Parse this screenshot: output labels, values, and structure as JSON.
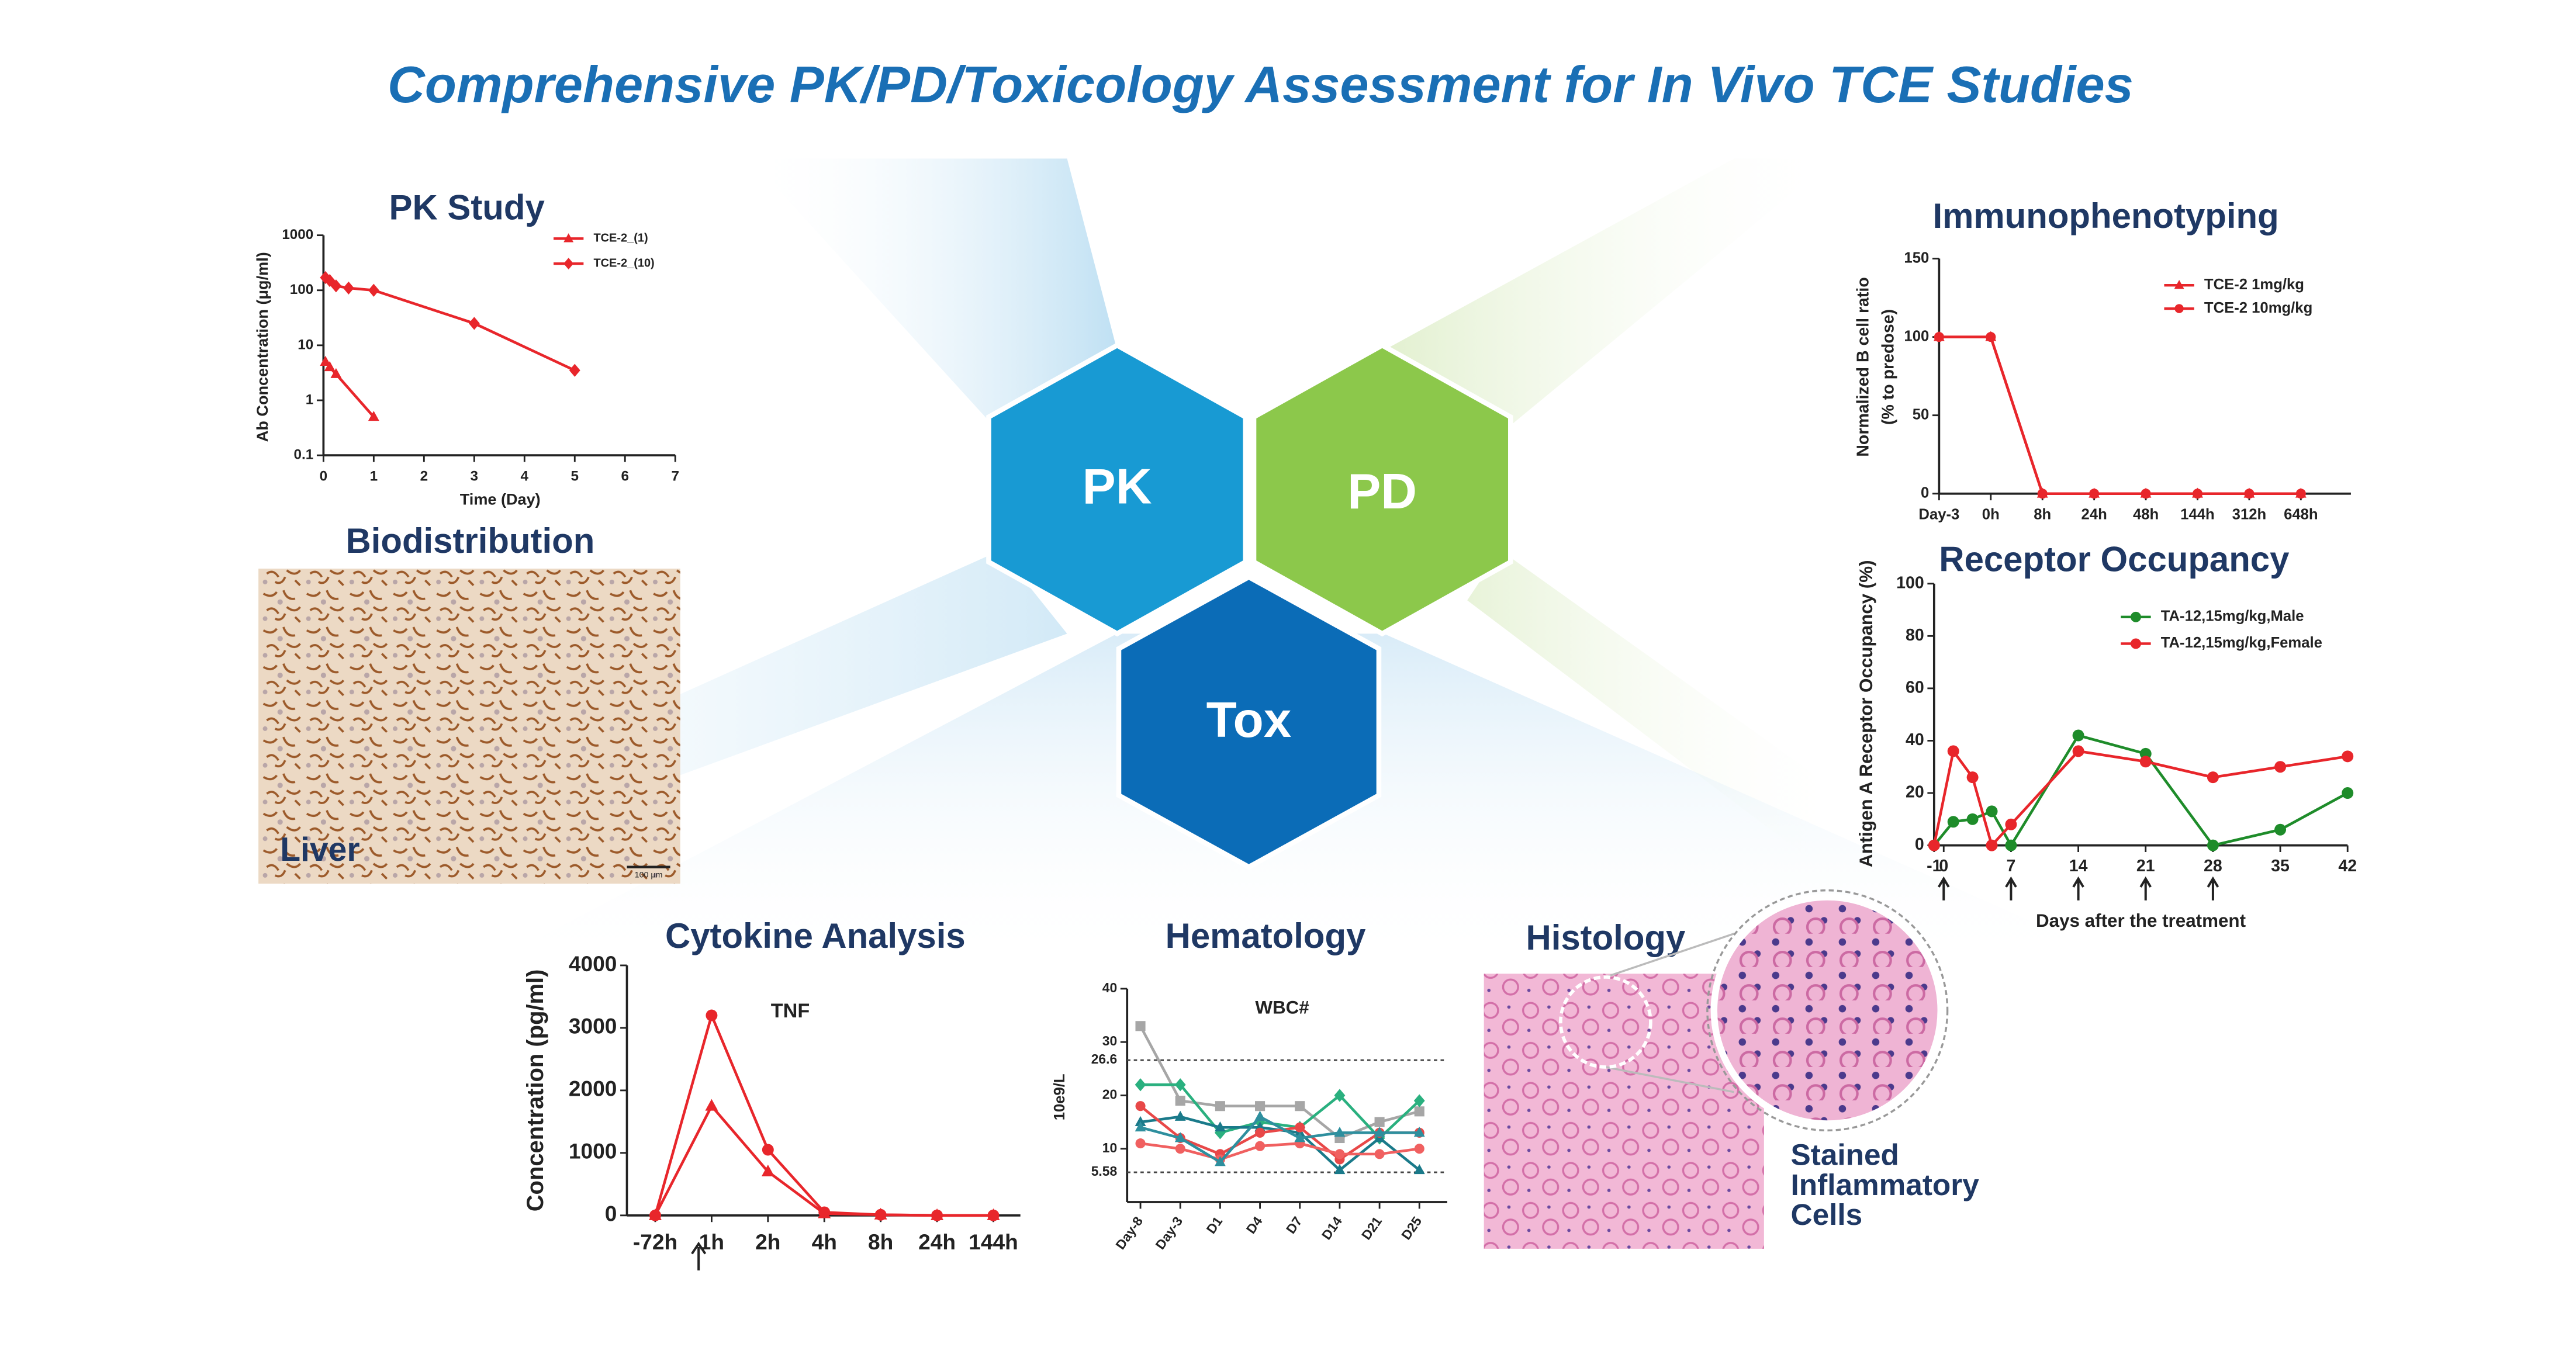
{
  "title": "Comprehensive PK/PD/Toxicology Assessment for In Vivo TCE Studies",
  "hexagons": [
    {
      "label": "PK",
      "color": "#189ad3"
    },
    {
      "label": "PD",
      "color": "#8cc84b"
    },
    {
      "label": "Tox",
      "color": "#0b6cb7"
    }
  ],
  "biodistribution": {
    "title": "Biodistribution",
    "label": "Liver",
    "scale_bar": "100 μm"
  },
  "histology": {
    "title": "Histology",
    "label": [
      "Stained",
      "Inflammatory",
      "Cells"
    ]
  },
  "chart_data": [
    {
      "type": "line",
      "title": "PK Study",
      "x_label": "Time (Day)",
      "y_label": "Ab Concentration (μg/ml)",
      "log_y": true,
      "xlim": [
        0,
        7
      ],
      "xticks": [
        0,
        1,
        2,
        3,
        4,
        5,
        6,
        7
      ],
      "ylim": [
        0.1,
        1000
      ],
      "yticks": [
        0.1,
        1,
        10,
        100,
        1000
      ],
      "series": [
        {
          "name": "TCE-2_(1)",
          "color": "#e8262b",
          "marker": "triangle",
          "x": [
            0.04,
            0.125,
            0.25,
            1
          ],
          "values": [
            5,
            4,
            3,
            0.5
          ]
        },
        {
          "name": "TCE-2_(10)",
          "color": "#e8262b",
          "marker": "diamond",
          "x": [
            0.04,
            0.125,
            0.25,
            0.5,
            1,
            3,
            5
          ],
          "values": [
            170,
            150,
            120,
            110,
            100,
            25,
            3.5
          ]
        }
      ]
    },
    {
      "type": "line",
      "title": "Immunophenotyping",
      "y_label": [
        "Normalized B cell ratio",
        "(% to predose)"
      ],
      "categories": [
        "Day-3",
        "0h",
        "8h",
        "24h",
        "48h",
        "144h",
        "312h",
        "648h"
      ],
      "ylim": [
        0,
        150
      ],
      "yticks": [
        0,
        50,
        100,
        150
      ],
      "series": [
        {
          "name": "TCE-2 1mg/kg",
          "color": "#e8262b",
          "marker": "triangle",
          "values": [
            100,
            100,
            0,
            0,
            0,
            0,
            0,
            0
          ]
        },
        {
          "name": "TCE-2 10mg/kg",
          "color": "#e8262b",
          "marker": "circle",
          "values": [
            100,
            100,
            0,
            0,
            0,
            0,
            0,
            0
          ]
        }
      ]
    },
    {
      "type": "line",
      "title": "Receptor Occupancy",
      "x_label": "Days after the treatment",
      "y_label": "Antigen A Receptor Occupancy (%)",
      "xlim": [
        -1,
        42
      ],
      "xticks": [
        -1,
        0,
        7,
        14,
        21,
        28,
        35,
        42
      ],
      "ylim": [
        0,
        100
      ],
      "yticks": [
        0,
        20,
        40,
        60,
        80,
        100
      ],
      "dose_days": [
        0,
        7,
        14,
        21,
        28
      ],
      "series": [
        {
          "name": "TA-12,15mg/kg,Male",
          "color": "#1e8c2a",
          "marker": "circle",
          "x": [
            -1,
            1,
            3,
            5,
            7,
            14,
            21,
            28,
            35,
            42
          ],
          "values": [
            0,
            9,
            10,
            13,
            0,
            42,
            35,
            0,
            6,
            20
          ]
        },
        {
          "name": "TA-12,15mg/kg,Female",
          "color": "#e8262b",
          "marker": "circle",
          "x": [
            -1,
            1,
            3,
            5,
            7,
            14,
            21,
            28,
            35,
            42
          ],
          "values": [
            0,
            36,
            26,
            0,
            8,
            36,
            32,
            26,
            30,
            34
          ]
        }
      ]
    },
    {
      "type": "line",
      "title": "Cytokine Analysis",
      "note": "TNF",
      "y_label": "Concentration (pg/ml)",
      "categories": [
        "-72h",
        "1h",
        "2h",
        "4h",
        "8h",
        "24h",
        "144h"
      ],
      "ylim": [
        0,
        4000
      ],
      "yticks": [
        0,
        1000,
        2000,
        3000,
        4000
      ],
      "series": [
        {
          "color": "#e8262b",
          "marker": "circle",
          "values": [
            0,
            3200,
            1050,
            50,
            10,
            0,
            0
          ]
        },
        {
          "color": "#e8262b",
          "marker": "triangle",
          "values": [
            0,
            1750,
            700,
            30,
            10,
            0,
            0
          ]
        }
      ]
    },
    {
      "type": "line",
      "title": "Hematology",
      "note": "WBC#",
      "y_label": "10e9/L",
      "categories": [
        "Day-8",
        "Day-3",
        "D1",
        "D4",
        "D7",
        "D14",
        "D21",
        "D25"
      ],
      "ylim": [
        0,
        40
      ],
      "yticks": [
        10,
        20,
        30,
        40
      ],
      "ref_lines": [
        26.6,
        5.58
      ],
      "series": [
        {
          "color": "#a6a6a6",
          "marker": "square",
          "values": [
            33,
            19,
            18,
            18,
            18,
            12,
            15,
            17
          ]
        },
        {
          "color": "#2ab07f",
          "marker": "diamond",
          "values": [
            22,
            22,
            13,
            15,
            14,
            20,
            12,
            19
          ]
        },
        {
          "color": "#1a7a8a",
          "marker": "triangle",
          "values": [
            15,
            16,
            14,
            14,
            13,
            6,
            12,
            6
          ]
        },
        {
          "color": "#e84848",
          "marker": "circle",
          "values": [
            18,
            12,
            9,
            13,
            14,
            8,
            13,
            13
          ]
        },
        {
          "color": "#f06060",
          "marker": "circle",
          "values": [
            11,
            10,
            8,
            10.5,
            11,
            9,
            9,
            10
          ]
        },
        {
          "color": "#2e8f9e",
          "marker": "triangle",
          "values": [
            14,
            12,
            7.5,
            16,
            12,
            13,
            13,
            13
          ]
        }
      ]
    }
  ]
}
